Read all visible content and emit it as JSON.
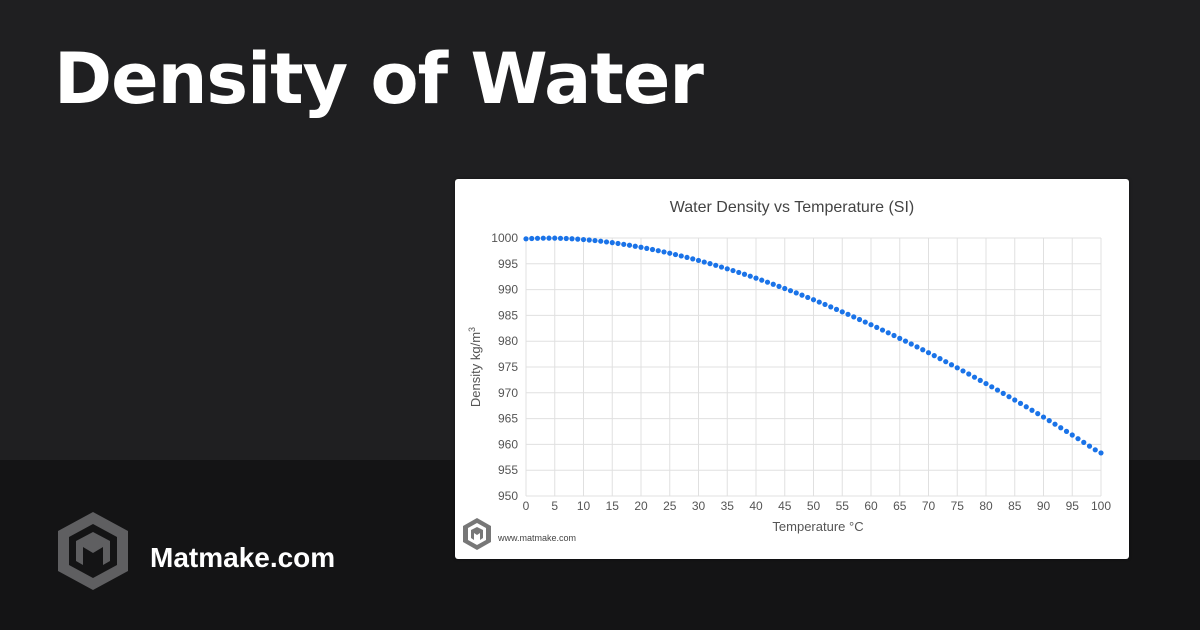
{
  "page": {
    "title": "Density of Water",
    "brand": "Matmake.com",
    "watermark": "www.matmake.com"
  },
  "colors": {
    "point": "#1a73e8",
    "background_top": "#1f1f21",
    "background_bottom": "#141415"
  },
  "chart_data": {
    "type": "scatter",
    "title": "Water Density vs Temperature (SI)",
    "xlabel": "Temperature °C",
    "ylabel_main": "Density kg/m",
    "ylabel_sup": "3",
    "xlim": [
      0,
      100
    ],
    "ylim": [
      950,
      1000
    ],
    "xticks": [
      0,
      5,
      10,
      15,
      20,
      25,
      30,
      35,
      40,
      45,
      50,
      55,
      60,
      65,
      70,
      75,
      80,
      85,
      90,
      95,
      100
    ],
    "yticks": [
      950,
      955,
      960,
      965,
      970,
      975,
      980,
      985,
      990,
      995,
      1000
    ],
    "grid": true,
    "series": [
      {
        "x": [
          0,
          1,
          2,
          3,
          4,
          5,
          6,
          7,
          8,
          9,
          10,
          11,
          12,
          13,
          14,
          15,
          16,
          17,
          18,
          19,
          20,
          21,
          22,
          23,
          24,
          25,
          26,
          27,
          28,
          29,
          30,
          31,
          32,
          33,
          34,
          35,
          36,
          37,
          38,
          39,
          40,
          41,
          42,
          43,
          44,
          45,
          46,
          47,
          48,
          49,
          50,
          51,
          52,
          53,
          54,
          55,
          56,
          57,
          58,
          59,
          60,
          61,
          62,
          63,
          64,
          65,
          66,
          67,
          68,
          69,
          70,
          71,
          72,
          73,
          74,
          75,
          76,
          77,
          78,
          79,
          80,
          81,
          82,
          83,
          84,
          85,
          86,
          87,
          88,
          89,
          90,
          91,
          92,
          93,
          94,
          95,
          96,
          97,
          98,
          99,
          100
        ],
        "y": [
          999.84,
          999.9,
          999.94,
          999.96,
          999.97,
          999.97,
          999.94,
          999.9,
          999.85,
          999.78,
          999.7,
          999.61,
          999.5,
          999.38,
          999.24,
          999.1,
          998.94,
          998.77,
          998.6,
          998.4,
          998.21,
          997.99,
          997.77,
          997.54,
          997.3,
          997.05,
          996.79,
          996.52,
          996.24,
          995.95,
          995.65,
          995.34,
          995.03,
          994.71,
          994.37,
          994.03,
          993.69,
          993.33,
          992.97,
          992.6,
          992.22,
          991.83,
          991.44,
          991.04,
          990.63,
          990.21,
          989.79,
          989.36,
          988.93,
          988.48,
          988.04,
          987.58,
          987.12,
          986.65,
          986.17,
          985.69,
          985.21,
          984.71,
          984.21,
          983.71,
          983.2,
          982.68,
          982.16,
          981.63,
          981.1,
          980.55,
          980.01,
          979.46,
          978.9,
          978.34,
          977.77,
          977.2,
          976.62,
          976.03,
          975.44,
          974.84,
          974.24,
          973.64,
          973.03,
          972.41,
          971.79,
          971.16,
          970.53,
          969.89,
          969.25,
          968.6,
          967.95,
          967.29,
          966.62,
          965.96,
          965.3,
          964.61,
          963.92,
          963.23,
          962.52,
          961.82,
          961.11,
          960.39,
          959.67,
          958.95,
          958.35
        ]
      }
    ]
  }
}
